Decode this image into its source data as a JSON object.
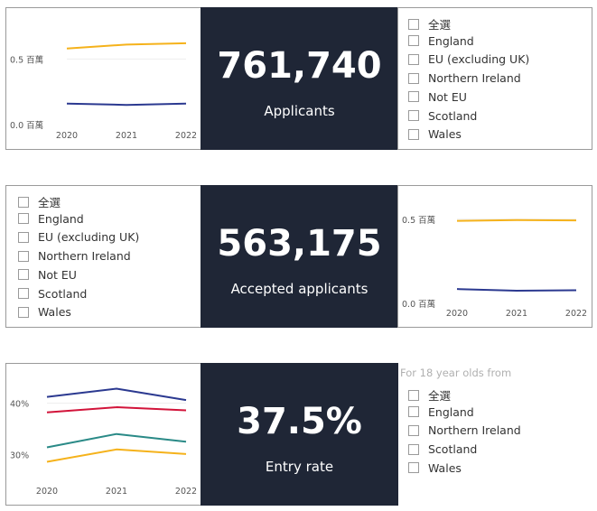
{
  "row1": {
    "kpi": {
      "value": "761,740",
      "label": "Applicants"
    },
    "chart_tick_labels": {
      "y_top": "0.5 百萬",
      "y_bottom": "0.0 百萬",
      "x": [
        "2020",
        "2021",
        "2022"
      ]
    },
    "filter_items": [
      "全選",
      "England",
      "EU (excluding UK)",
      "Northern Ireland",
      "Not EU",
      "Scotland",
      "Wales"
    ]
  },
  "row2": {
    "kpi": {
      "value": "563,175",
      "label": "Accepted applicants"
    },
    "chart_tick_labels": {
      "y_top": "0.5 百萬",
      "y_bottom": "0.0 百萬",
      "x": [
        "2020",
        "2021",
        "2022"
      ]
    },
    "filter_items": [
      "全選",
      "England",
      "EU (excluding UK)",
      "Northern Ireland",
      "Not EU",
      "Scotland",
      "Wales"
    ]
  },
  "row3": {
    "kpi": {
      "value": "37.5%",
      "label": "Entry rate"
    },
    "chart_tick_labels": {
      "y_top": "40%",
      "y_bottom": "30%",
      "x": [
        "2020",
        "2021",
        "2022"
      ]
    },
    "filter_hint": "For 18 year olds from",
    "filter_items": [
      "全選",
      "England",
      "Northern Ireland",
      "Scotland",
      "Wales"
    ]
  },
  "colors": {
    "dark_panel": "#1f2636",
    "orange": "#f5b21b",
    "navy": "#2b3990",
    "red": "#d2143a",
    "teal": "#2a8a87"
  },
  "chart_data": [
    {
      "type": "line",
      "x": [
        2020,
        2021,
        2022
      ],
      "series": [
        {
          "color": "#f5b21b",
          "values": [
            0.58,
            0.61,
            0.62
          ]
        },
        {
          "color": "#2b3990",
          "values": [
            0.16,
            0.15,
            0.16
          ]
        }
      ],
      "ylim": [
        0,
        0.75
      ]
    },
    {
      "type": "line",
      "x": [
        2020,
        2021,
        2022
      ],
      "series": [
        {
          "color": "#f5b21b",
          "values": [
            0.49,
            0.495,
            0.493
          ]
        },
        {
          "color": "#2b3990",
          "values": [
            0.085,
            0.075,
            0.078
          ]
        }
      ],
      "ylim": [
        0,
        0.59
      ]
    },
    {
      "type": "line",
      "x": [
        2020,
        2021,
        2022
      ],
      "series": [
        {
          "color": "#2b3990",
          "values": [
            41.2,
            42.8,
            40.6
          ]
        },
        {
          "color": "#d2143a",
          "values": [
            38.2,
            39.2,
            38.6
          ]
        },
        {
          "color": "#2a8a87",
          "values": [
            31.4,
            34.0,
            32.5
          ]
        },
        {
          "color": "#f5b21b",
          "values": [
            28.6,
            31.0,
            30.1
          ]
        }
      ],
      "ylim": [
        25,
        45
      ]
    }
  ]
}
